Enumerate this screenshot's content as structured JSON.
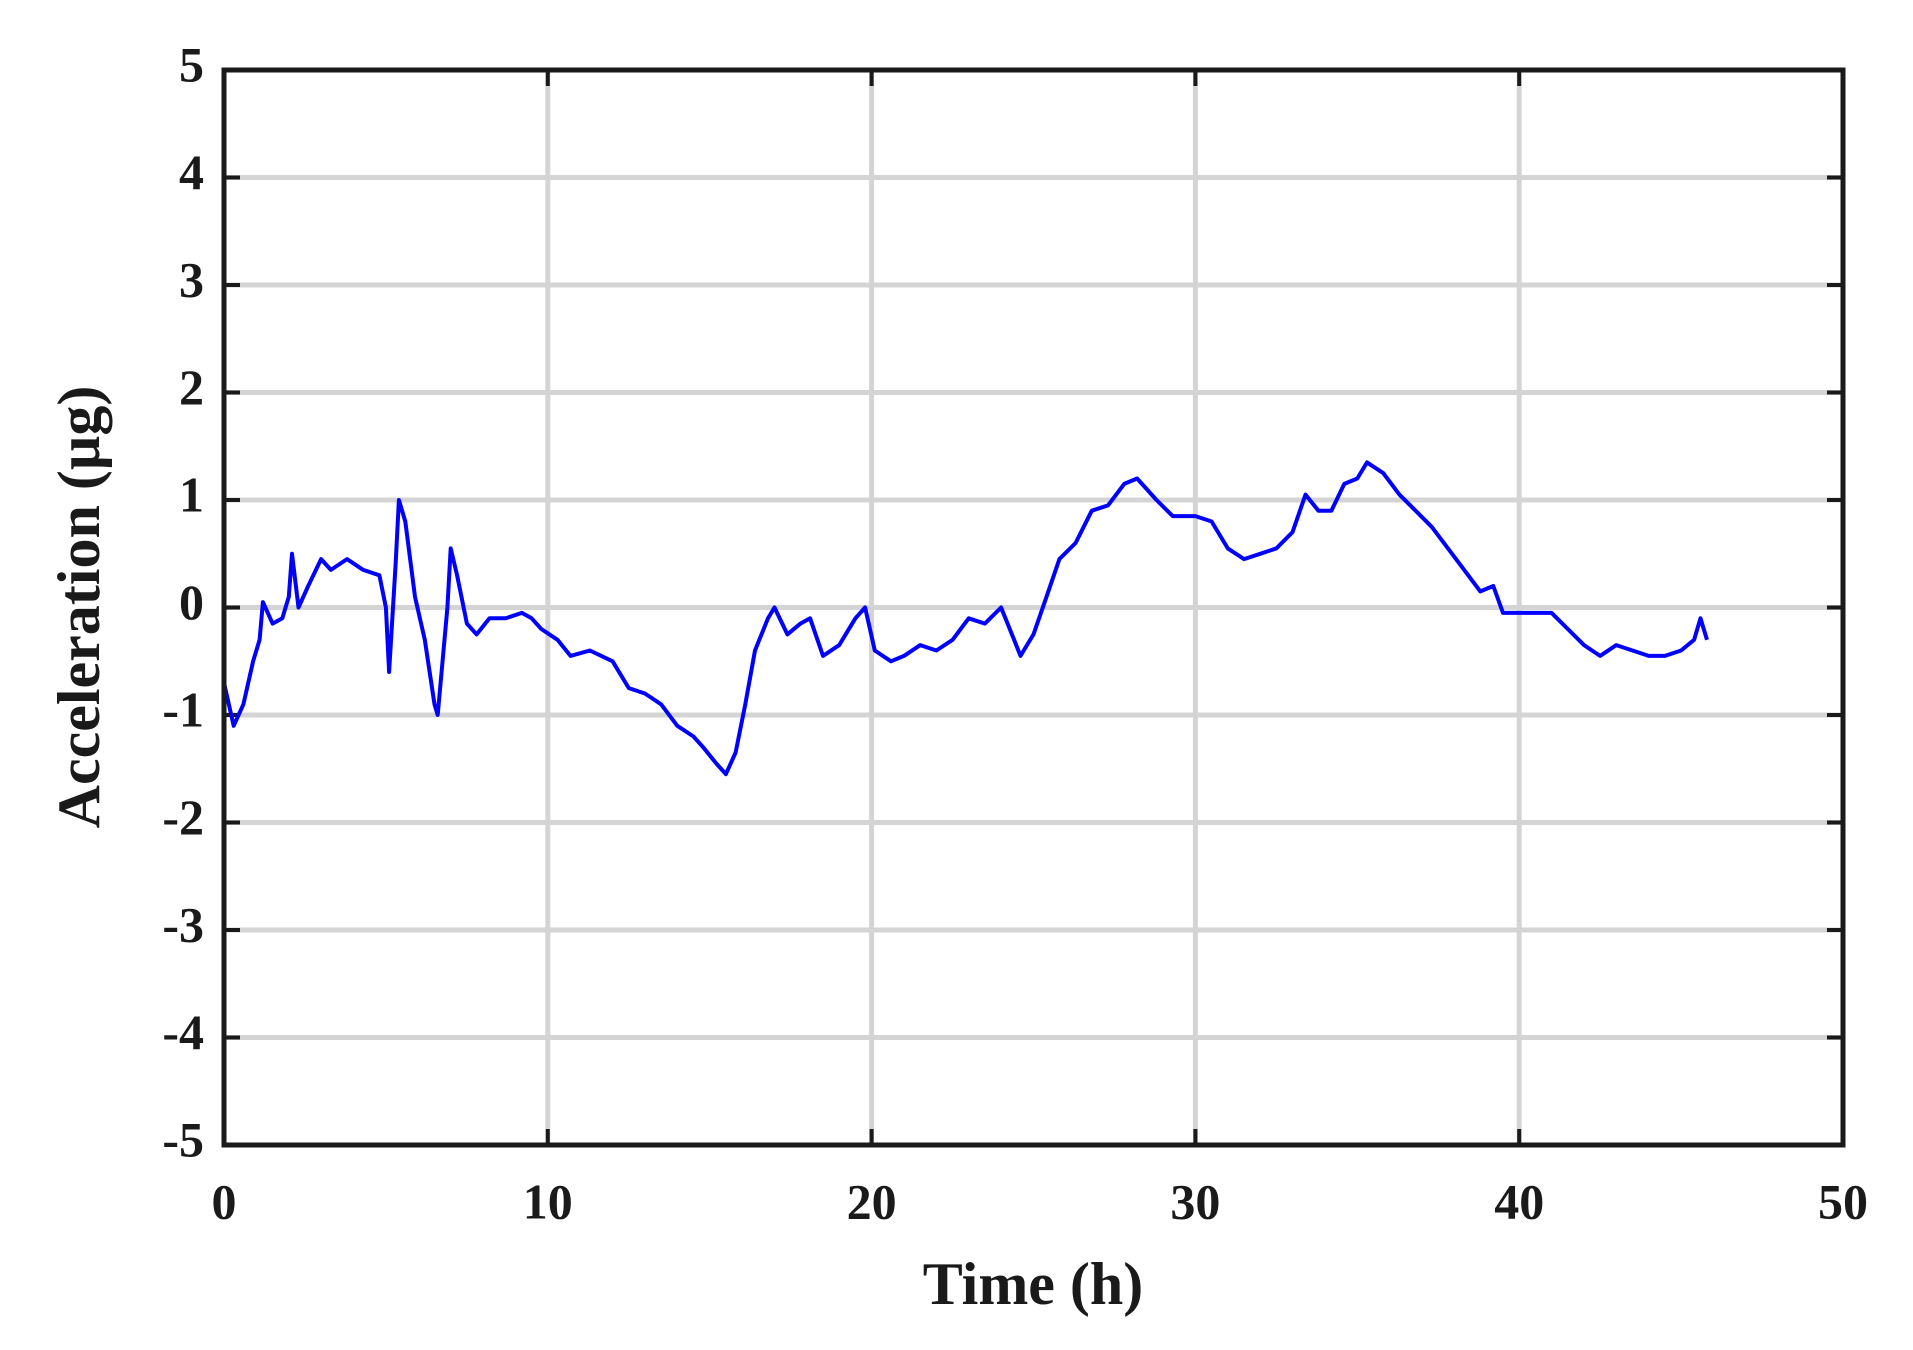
{
  "chart_data": {
    "type": "line",
    "xlabel": "Time (h)",
    "ylabel": "Acceleration (µg)",
    "color": "#0000ff",
    "grid": true,
    "xlim": [
      0,
      50
    ],
    "xticks": [
      0,
      10,
      20,
      30,
      40,
      50
    ],
    "ylim": [
      -5,
      5
    ],
    "yticks": [
      -5,
      -4,
      -3,
      -2,
      -1,
      0,
      1,
      2,
      3,
      4,
      5
    ],
    "x": [
      0,
      0.3,
      0.6,
      0.9,
      1.1,
      1.2,
      1.5,
      1.8,
      2.0,
      2.1,
      2.3,
      2.6,
      3.0,
      3.3,
      3.8,
      4.3,
      4.8,
      5.0,
      5.1,
      5.3,
      5.4,
      5.6,
      5.9,
      6.2,
      6.5,
      6.6,
      6.9,
      7.0,
      7.2,
      7.5,
      7.8,
      8.2,
      8.7,
      9.2,
      9.5,
      9.8,
      10.3,
      10.7,
      11.3,
      12.0,
      12.5,
      13.0,
      13.5,
      14.0,
      14.5,
      14.8,
      15.2,
      15.5,
      15.8,
      16.1,
      16.4,
      16.8,
      17.0,
      17.4,
      17.8,
      18.1,
      18.5,
      19.0,
      19.5,
      19.8,
      20.1,
      20.6,
      21.0,
      21.5,
      22.0,
      22.5,
      23.0,
      23.5,
      24.0,
      24.4,
      24.6,
      25.0,
      25.4,
      25.8,
      26.3,
      26.8,
      27.3,
      27.8,
      28.2,
      28.8,
      29.3,
      30.0,
      30.5,
      31.0,
      31.5,
      32.0,
      32.5,
      33.0,
      33.4,
      33.8,
      34.2,
      34.6,
      35.0,
      35.3,
      35.8,
      36.3,
      36.8,
      37.3,
      37.8,
      38.3,
      38.8,
      39.2,
      39.5,
      40.0,
      40.5,
      41.0,
      41.5,
      42.0,
      42.5,
      43.0,
      43.5,
      44.0,
      44.5,
      45.0,
      45.4,
      45.6,
      45.8
    ],
    "values": [
      -0.7,
      -1.1,
      -0.9,
      -0.5,
      -0.3,
      0.05,
      -0.15,
      -0.1,
      0.1,
      0.5,
      0.0,
      0.2,
      0.45,
      0.35,
      0.45,
      0.35,
      0.3,
      0.0,
      -0.6,
      0.4,
      1.0,
      0.8,
      0.1,
      -0.3,
      -0.9,
      -1.0,
      0.0,
      0.55,
      0.3,
      -0.15,
      -0.25,
      -0.1,
      -0.1,
      -0.05,
      -0.1,
      -0.2,
      -0.3,
      -0.45,
      -0.4,
      -0.5,
      -0.75,
      -0.8,
      -0.9,
      -1.1,
      -1.2,
      -1.3,
      -1.45,
      -1.55,
      -1.35,
      -0.9,
      -0.4,
      -0.1,
      0.0,
      -0.25,
      -0.15,
      -0.1,
      -0.45,
      -0.35,
      -0.1,
      0.0,
      -0.4,
      -0.5,
      -0.45,
      -0.35,
      -0.4,
      -0.3,
      -0.1,
      -0.15,
      0.0,
      -0.3,
      -0.45,
      -0.25,
      0.1,
      0.45,
      0.6,
      0.9,
      0.95,
      1.15,
      1.2,
      1.0,
      0.85,
      0.85,
      0.8,
      0.55,
      0.45,
      0.5,
      0.55,
      0.7,
      1.05,
      0.9,
      0.9,
      1.15,
      1.2,
      1.35,
      1.25,
      1.05,
      0.9,
      0.75,
      0.55,
      0.35,
      0.15,
      0.2,
      -0.05,
      -0.05,
      -0.05,
      -0.05,
      -0.2,
      -0.35,
      -0.45,
      -0.35,
      -0.4,
      -0.45,
      -0.45,
      -0.4,
      -0.3,
      -0.1,
      -0.3
    ]
  }
}
